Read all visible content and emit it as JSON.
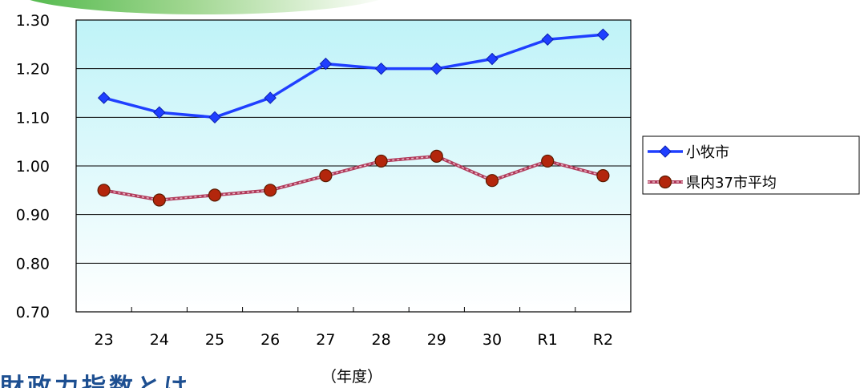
{
  "heading_fragment": "財政力指数とは",
  "chart_data": {
    "type": "line",
    "categories": [
      "23",
      "24",
      "25",
      "26",
      "27",
      "28",
      "29",
      "30",
      "R1",
      "R2"
    ],
    "series": [
      {
        "name": "小牧市",
        "values": [
          1.14,
          1.11,
          1.1,
          1.14,
          1.21,
          1.2,
          1.2,
          1.22,
          1.26,
          1.27
        ],
        "color": "#1f3fff",
        "marker": "diamond"
      },
      {
        "name": "県内37市平均",
        "values": [
          0.95,
          0.93,
          0.94,
          0.95,
          0.98,
          1.01,
          1.02,
          0.97,
          1.01,
          0.98
        ],
        "color": "#b03a5a",
        "marker": "circle",
        "marker_fill": "#b3260c"
      }
    ],
    "y_ticks": [
      "0.70",
      "0.80",
      "0.90",
      "1.00",
      "1.10",
      "1.20",
      "1.30"
    ],
    "ylim": [
      0.7,
      1.3
    ],
    "xlabel": "（年度）",
    "ylabel": "",
    "title": "",
    "grid": true,
    "legend_position": "right",
    "plot_background": [
      "#bff3f8",
      "#ffffff"
    ]
  }
}
